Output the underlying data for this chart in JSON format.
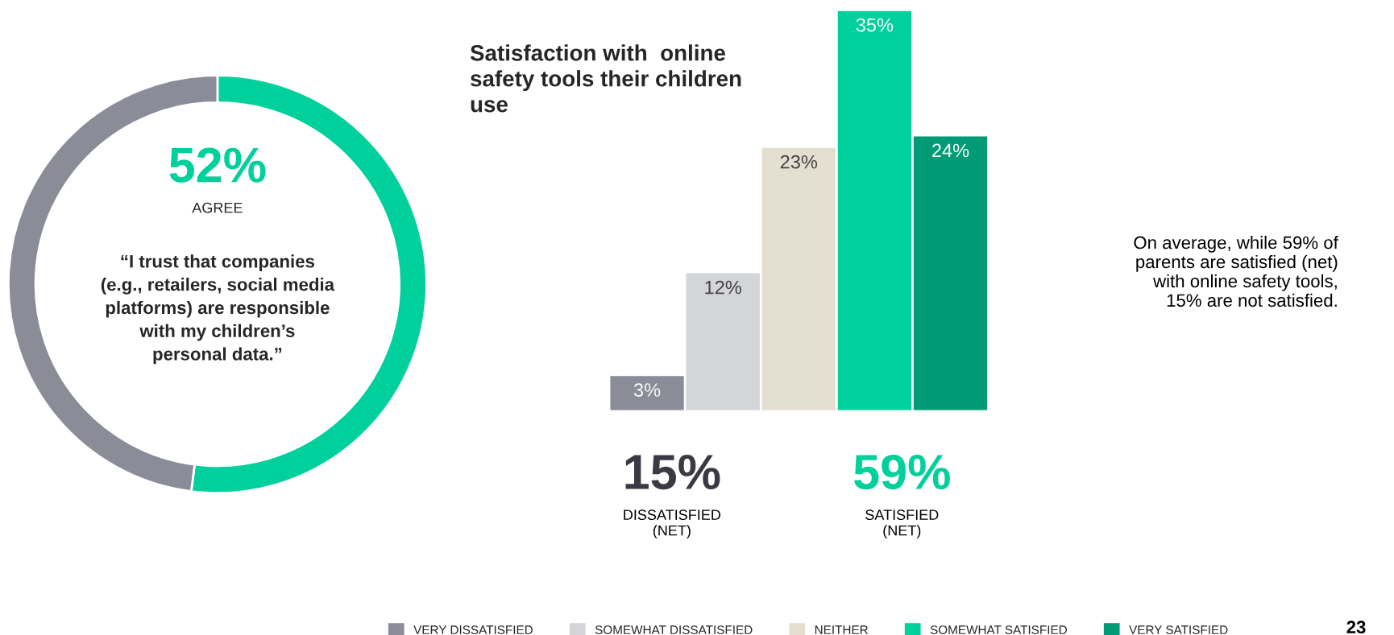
{
  "chart_data": [
    {
      "type": "donut",
      "categories": [
        "AGREE",
        null
      ],
      "values": [
        52,
        48
      ],
      "colors": [
        "#00d09c",
        "#8a8d97"
      ],
      "value_labels": [
        "52%",
        null
      ],
      "annotations": [
        "“I trust that companies\n(e.g., retailers, social media\nplatforms) are responsible\nwith my children’s\npersonal data.”"
      ]
    },
    {
      "type": "bar",
      "title": "Satisfaction with  online\nsafety tools their children\nuse",
      "legend": "bottom",
      "stacked": true,
      "categories": [
        null,
        null,
        null,
        null,
        null
      ],
      "series": [
        {
          "name": "VERY DISSATISFIED",
          "color": "#8a8d97",
          "values": [
            3,
            null,
            null,
            null,
            null
          ],
          "value_labels": [
            "3%",
            null,
            null,
            null,
            null
          ]
        },
        {
          "name": "SOMEWHAT DISSATISFIED",
          "color": "#d4d5d8",
          "values": [
            null,
            12,
            null,
            null,
            null
          ],
          "value_labels": [
            null,
            "12%",
            null,
            null,
            null
          ]
        },
        {
          "name": "NEITHER",
          "color": "#e4dfd0",
          "values": [
            null,
            null,
            23,
            null,
            null
          ],
          "value_labels": [
            null,
            null,
            "23%",
            null,
            null
          ]
        },
        {
          "name": "SOMEWHAT SATISFIED",
          "color": "#00d09c",
          "values": [
            null,
            null,
            null,
            35,
            null
          ],
          "value_labels": [
            null,
            null,
            null,
            "35%",
            null
          ]
        },
        {
          "name": "VERY SATISFIED",
          "color": "#009b76",
          "values": [
            null,
            null,
            null,
            null,
            24
          ],
          "value_labels": [
            null,
            null,
            null,
            null,
            "24%"
          ]
        }
      ],
      "annotations": [
        "15%",
        "DISSATISFIED\n(NET)",
        "59%",
        "SATISFIED\n(NET)",
        "On average, while 59% of\nparents are satisfied (net)\nwith online safety tools,\n15% are not satisfied.",
        "23"
      ]
    }
  ]
}
